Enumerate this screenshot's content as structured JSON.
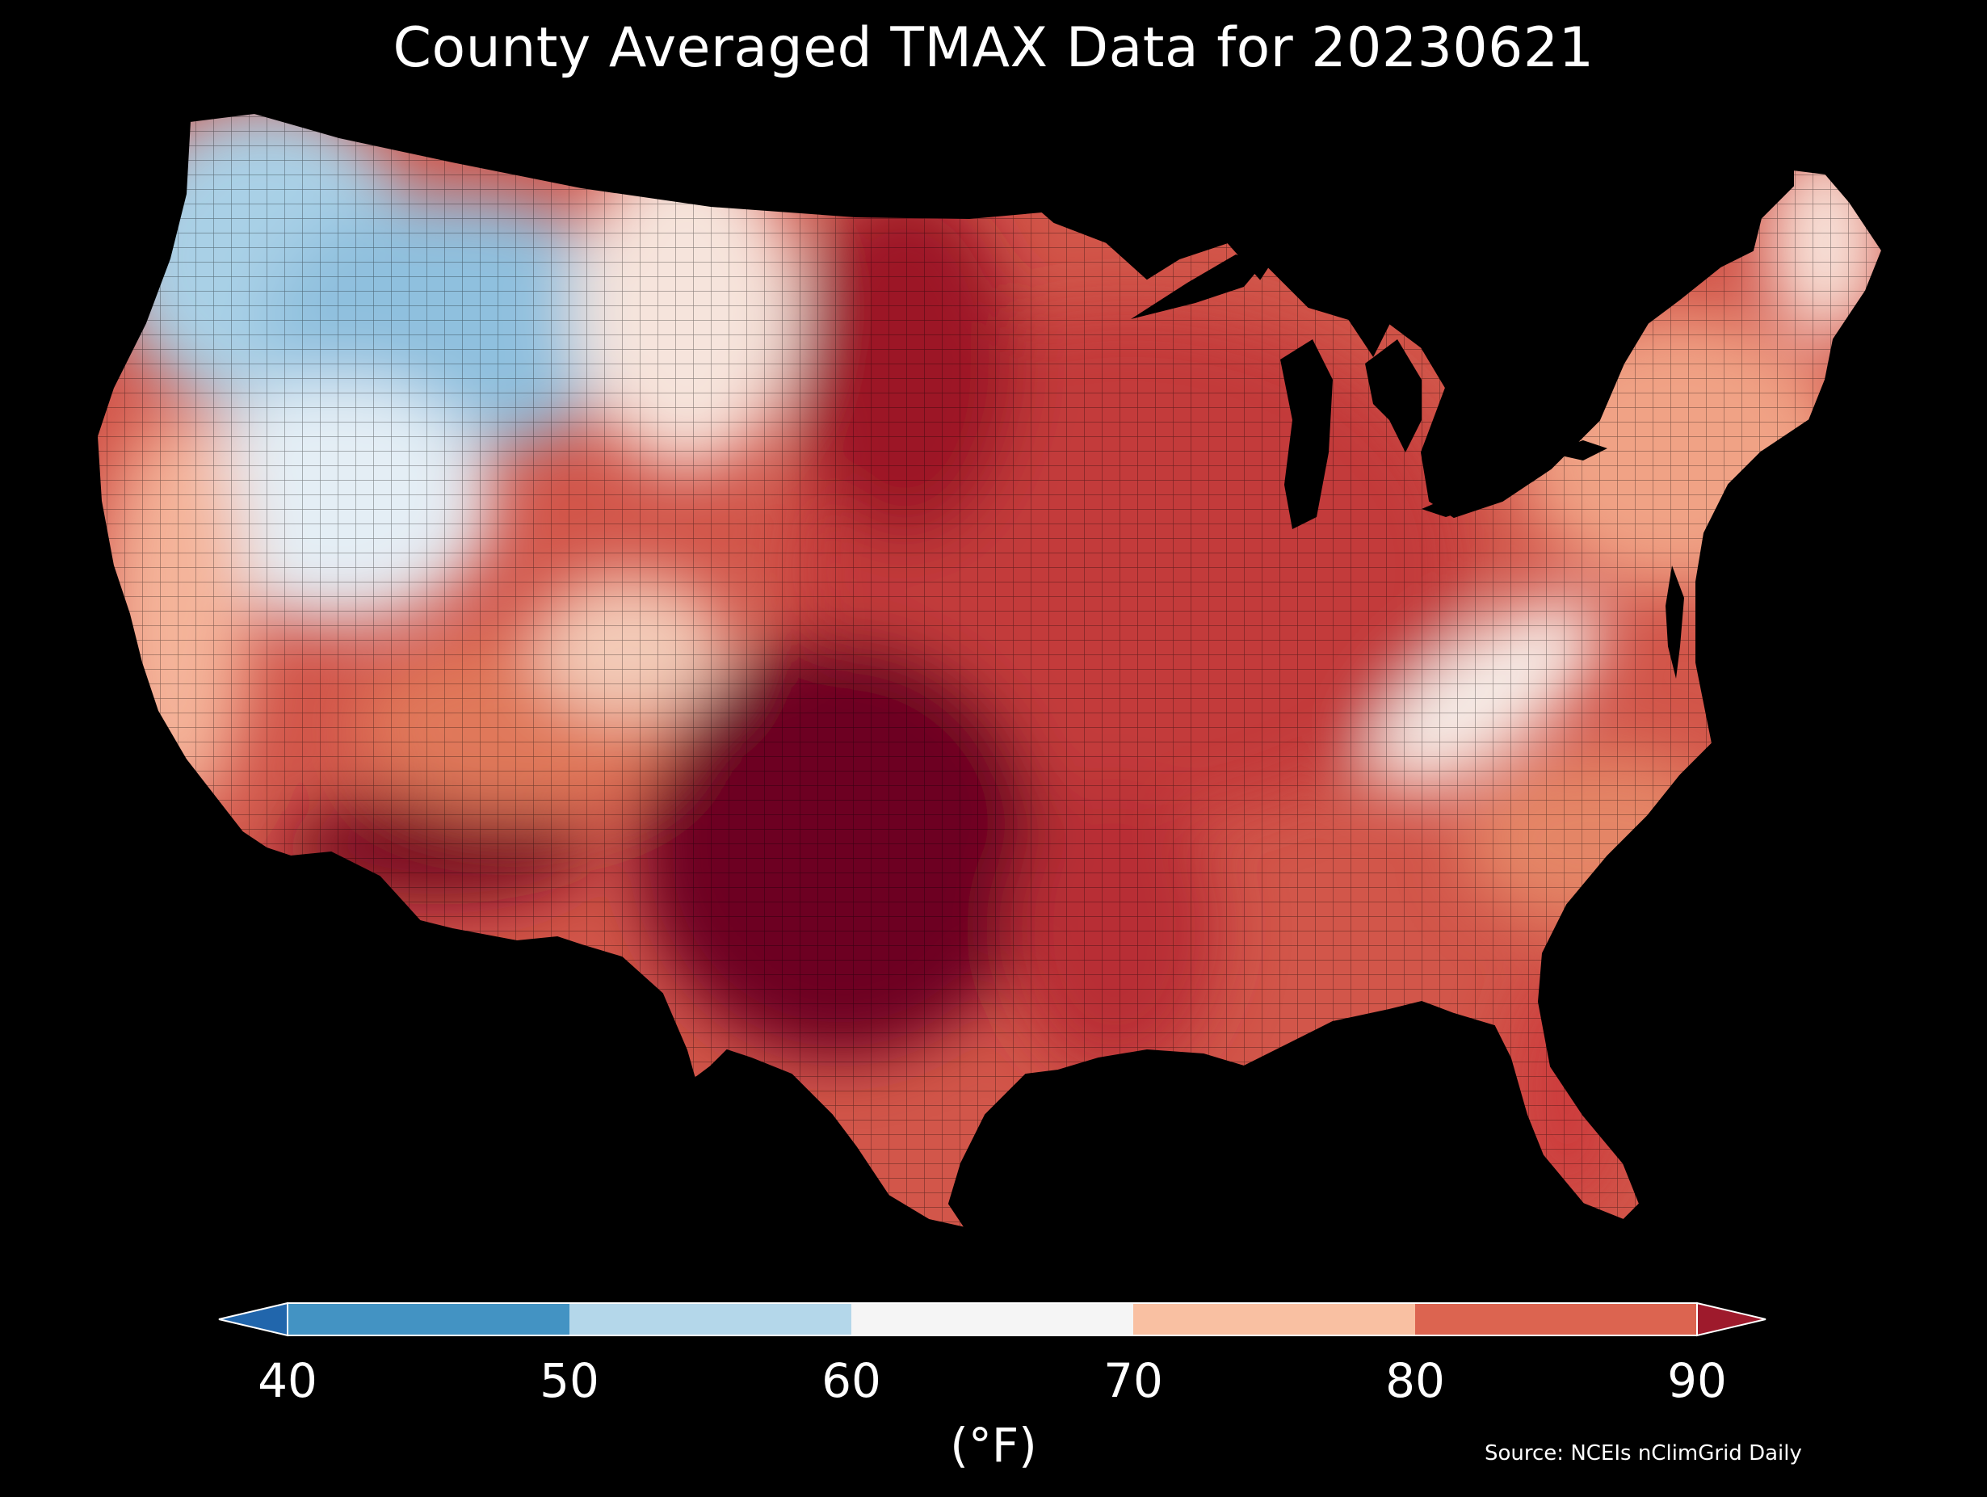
{
  "title": "County Averaged TMAX Data for 20230621",
  "colorbar": {
    "unit": "(°F)",
    "ticks": [
      "40",
      "50",
      "60",
      "70",
      "80",
      "90"
    ],
    "bins": [
      {
        "label": "<40",
        "color": "#2166ac"
      },
      {
        "label": "40-50",
        "color": "#4393c3"
      },
      {
        "label": "50-60",
        "color": "#b4d7ea"
      },
      {
        "label": "60-70",
        "color": "#f5f5f5"
      },
      {
        "label": "70-80",
        "color": "#f9c0a2"
      },
      {
        "label": "80-90",
        "color": "#dc6450"
      },
      {
        "label": ">90",
        "color": "#9e1a2c"
      }
    ]
  },
  "source": "Source: NCEIs nClimGrid Daily",
  "regions": [
    {
      "name": "pacific-northwest",
      "approx_tmax": "50-60",
      "color": "#a9d0e6"
    },
    {
      "name": "northern-rockies",
      "approx_tmax": "50-60",
      "color": "#8fc0de"
    },
    {
      "name": "great-basin",
      "approx_tmax": "60-70",
      "color": "#e4eef5"
    },
    {
      "name": "california-coast",
      "approx_tmax": "70-80",
      "color": "#f4b49a"
    },
    {
      "name": "desert-southwest",
      "approx_tmax": ">90",
      "color": "#7a0a22"
    },
    {
      "name": "northern-plains",
      "approx_tmax": ">90",
      "color": "#9c1428"
    },
    {
      "name": "texas",
      "approx_tmax": ">90",
      "color": "#6d0620"
    },
    {
      "name": "midwest",
      "approx_tmax": "80-90",
      "color": "#c33a3a"
    },
    {
      "name": "southeast",
      "approx_tmax": "80-90",
      "color": "#d2564a"
    },
    {
      "name": "appalachians",
      "approx_tmax": "60-70",
      "color": "#f6ede8"
    },
    {
      "name": "northeast",
      "approx_tmax": "70-80",
      "color": "#f0a285"
    },
    {
      "name": "maine",
      "approx_tmax": "60-70",
      "color": "#f8e3da"
    },
    {
      "name": "florida",
      "approx_tmax": "80-90",
      "color": "#cc3e3e"
    }
  ]
}
